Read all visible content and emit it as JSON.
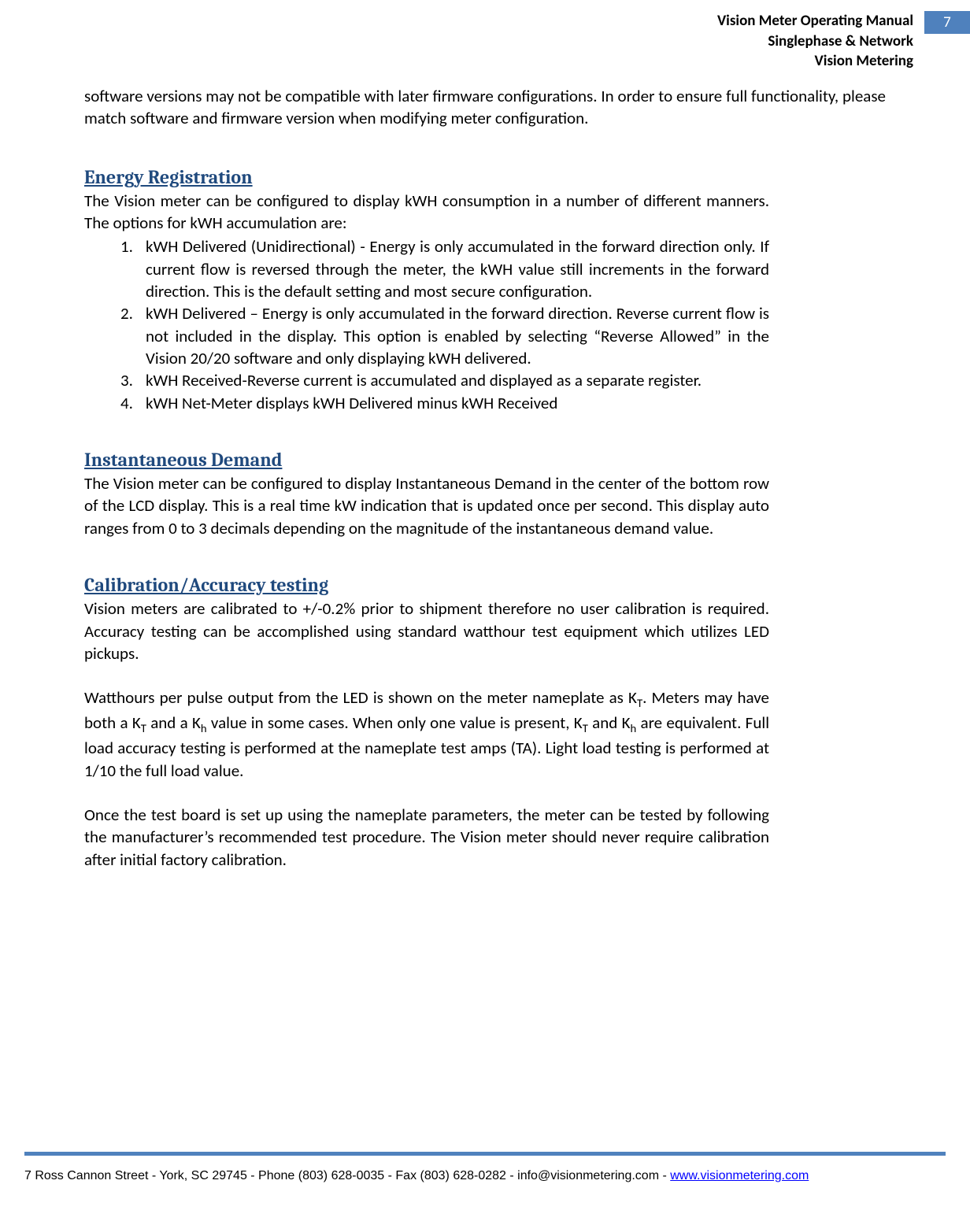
{
  "header": {
    "line1": "Vision Meter Operating Manual",
    "line2": "Singlephase & Network",
    "line3": "Vision Metering",
    "page_number": "7",
    "bg_color": "#4f81bd",
    "text_color": "#ffffff"
  },
  "intro": "software versions may not be compatible with later firmware configurations.  In order to ensure full functionality, please match software and firmware version when modifying meter configuration.",
  "sections": {
    "energy": {
      "heading": "Energy Registration",
      "intro": "The Vision meter can be configured to display kWH consumption in a number of different manners.  The options for kWH accumulation are:",
      "items": [
        "kWH Delivered (Unidirectional) - Energy is only accumulated in the forward direction only.  If current flow is reversed through the meter, the kWH value still increments in the forward direction.  This is the default setting and most secure configuration.",
        "kWH Delivered – Energy is only accumulated in the forward direction.  Reverse current flow is not included in the display.  This option is enabled by selecting “Reverse Allowed” in the Vision 20/20 software and only displaying kWH delivered.",
        "kWH Received-Reverse current is accumulated and displayed as a separate register.",
        "kWH Net-Meter displays kWH Delivered minus kWH Received"
      ]
    },
    "demand": {
      "heading": "Instantaneous Demand",
      "body": "The Vision meter can be configured to display Instantaneous Demand in the center of the bottom row of the LCD display.  This is a real time kW indication that is updated once per second.  This display auto ranges from 0 to 3 decimals depending on the magnitude of the instantaneous demand value."
    },
    "calibration": {
      "heading": "Calibration/Accuracy testing",
      "p1": "Vision meters are calibrated to +/-0.2% prior to shipment therefore no user calibration is required.  Accuracy testing can be accomplished using standard watthour test equipment which utilizes LED pickups.",
      "p2_pre": "Watthours per pulse output from the LED is shown on the meter nameplate as K",
      "p2_sub1": "T",
      "p2_mid1": ".  Meters may have both a K",
      "p2_sub2": "T",
      "p2_mid2": " and a K",
      "p2_sub3": "h",
      "p2_mid3": " value in some cases.  When only one value is present, K",
      "p2_sub4": "T",
      "p2_mid4": " and K",
      "p2_sub5": "h",
      "p2_post": " are equivalent.  Full load accuracy testing is performed at the nameplate test amps (TA).  Light load testing is performed at 1/10 the full load value.",
      "p3": "Once the test board is set up using the nameplate parameters, the meter can be tested by following the manufacturer’s recommended test procedure.  The Vision meter should never require calibration after initial factory calibration."
    }
  },
  "footer": {
    "text_pre": "7 Ross Cannon Street - York, SC 29745 - Phone (803) 628-0035 - Fax (803) 628-0282 - info@visionmetering.com - ",
    "link_text": "www.visionmetering.com",
    "rule_color": "#4f81bd",
    "link_color": "#0000ff"
  },
  "colors": {
    "heading_color": "#1f497d",
    "body_text": "#000000",
    "background": "#ffffff"
  },
  "typography": {
    "body_font": "Calibri",
    "body_size_pt": 16,
    "heading_font": "Cambria",
    "heading_size_pt": 18,
    "footer_font": "Century Gothic",
    "footer_size_pt": 12
  }
}
